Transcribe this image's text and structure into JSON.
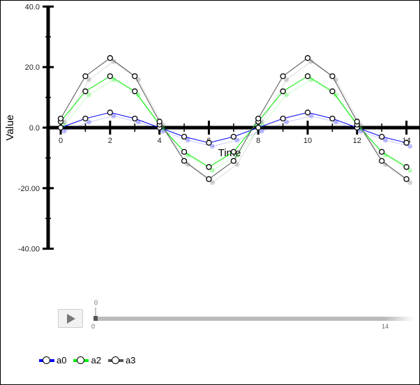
{
  "chart_data": {
    "type": "line",
    "xlabel": "Time",
    "ylabel": "Value",
    "xlim": [
      0,
      14
    ],
    "ylim": [
      -40,
      40
    ],
    "x": [
      0,
      1,
      2,
      3,
      4,
      5,
      6,
      7,
      8,
      9,
      10,
      11,
      12,
      13,
      14
    ],
    "x_tick_labels": [
      "0",
      "2",
      "4",
      "6",
      "8",
      "10",
      "12",
      "14"
    ],
    "y_tick_labels": [
      {
        "v": 40,
        "t": "40.0"
      },
      {
        "v": 20,
        "t": "20.0"
      },
      {
        "v": 0,
        "t": "0.0"
      },
      {
        "v": -20,
        "t": "-20.00"
      },
      {
        "v": -40,
        "t": "-40.00"
      }
    ],
    "series": [
      {
        "name": "a0",
        "color": "#0000ff",
        "values": [
          0,
          3,
          5,
          3,
          0,
          -3,
          -5,
          -3,
          0,
          3,
          5,
          3,
          0,
          -3,
          -5
        ]
      },
      {
        "name": "a2",
        "color": "#00ee00",
        "values": [
          2,
          12,
          17,
          12,
          1,
          -8,
          -13,
          -8,
          2,
          12,
          17,
          12,
          1,
          -8,
          -13
        ]
      },
      {
        "name": "a3",
        "color": "#555555",
        "values": [
          3,
          17,
          23,
          17,
          2,
          -11,
          -17,
          -11,
          3,
          17,
          23,
          17,
          2,
          -11,
          -17
        ]
      }
    ],
    "legend_position": "bottom-left",
    "grid": false
  },
  "slider": {
    "min_label": "0",
    "max_label": "14",
    "current_label": "0",
    "current": 0
  }
}
